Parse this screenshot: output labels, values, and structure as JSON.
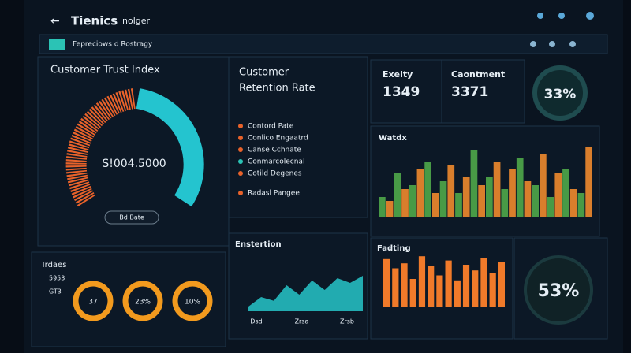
{
  "header": {
    "brand": "Tienics",
    "subtitle": "nolger"
  },
  "toolbar": {
    "label": "Fepreciows d Rostragy"
  },
  "trust_index": {
    "title": "Customer Trust Index",
    "value": "S!004.5000",
    "button": "Bd Bate"
  },
  "retention": {
    "title_line1": "Customer",
    "title_line2": "Retention Rate",
    "items": [
      "Contord Pate",
      "Conlico Engaatrd",
      "Canse Cchnate",
      "Conmarcolecnal",
      "Cotild Degenes",
      "Radasl Pangee"
    ]
  },
  "stats": [
    {
      "label": "Exeity",
      "value": 1349
    },
    {
      "label": "Caontment",
      "value": 3371
    },
    {
      "value": "33%"
    }
  ],
  "weekly": {
    "title": "Watdx",
    "series": [
      {
        "color": "#4fa84a",
        "values": [
          25,
          55,
          40,
          70,
          45,
          30,
          85,
          50,
          35,
          75,
          40,
          25,
          60,
          30
        ]
      },
      {
        "color": "#f08a2e",
        "values": [
          20,
          35,
          60,
          30,
          65,
          50,
          40,
          70,
          60,
          45,
          80,
          55,
          35,
          88
        ]
      }
    ]
  },
  "trends": {
    "title": "Trdaes",
    "rows": [
      "5953",
      "GT3"
    ],
    "rings": [
      "37",
      "23%",
      "10%"
    ]
  },
  "explanation": {
    "title": "Enstertion",
    "color": "#27c6c9",
    "values": [
      10,
      30,
      22,
      55,
      35,
      65,
      45,
      70,
      60,
      75
    ],
    "x_labels": [
      "Dsd",
      "Zrsa",
      "Zrsb"
    ]
  },
  "fadting": {
    "title": "Fadting",
    "color": "#f07a2a",
    "values": [
      68,
      55,
      62,
      40,
      72,
      58,
      45,
      66,
      38,
      60,
      52,
      70,
      48,
      64
    ]
  },
  "summary": {
    "value": "53%"
  }
}
